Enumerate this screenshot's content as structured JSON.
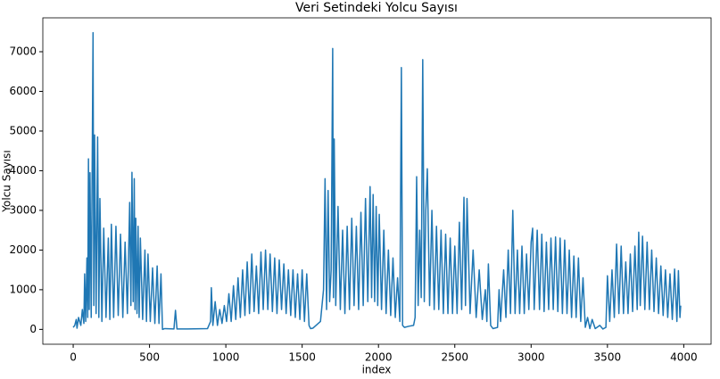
{
  "chart_data": {
    "type": "line",
    "title": "Veri Setindeki Yolcu Sayısı",
    "xlabel": "index",
    "ylabel": "Yolcu Sayısı",
    "color": "#1f77b4",
    "grid": false,
    "xlim": [
      -199,
      4179
    ],
    "ylim": [
      -374,
      7854
    ],
    "xticks": [
      0,
      500,
      1000,
      1500,
      2000,
      2500,
      3000,
      3500,
      4000
    ],
    "yticks": [
      0,
      1000,
      2000,
      3000,
      4000,
      5000,
      6000,
      7000
    ],
    "x": [
      0,
      10,
      20,
      25,
      35,
      50,
      60,
      70,
      75,
      82,
      90,
      95,
      100,
      105,
      110,
      118,
      130,
      135,
      140,
      150,
      160,
      168,
      175,
      188,
      200,
      215,
      230,
      240,
      250,
      265,
      280,
      295,
      310,
      325,
      340,
      355,
      370,
      378,
      385,
      393,
      400,
      405,
      410,
      418,
      425,
      432,
      440,
      455,
      470,
      480,
      490,
      505,
      520,
      535,
      550,
      562,
      575,
      585,
      600,
      660,
      670,
      680,
      750,
      880,
      900,
      905,
      915,
      930,
      945,
      960,
      975,
      990,
      1005,
      1020,
      1035,
      1050,
      1065,
      1080,
      1095,
      1110,
      1125,
      1140,
      1155,
      1170,
      1185,
      1200,
      1215,
      1230,
      1245,
      1260,
      1275,
      1290,
      1305,
      1320,
      1335,
      1350,
      1365,
      1380,
      1395,
      1410,
      1425,
      1440,
      1455,
      1470,
      1485,
      1500,
      1515,
      1530,
      1545,
      1555,
      1570,
      1620,
      1640,
      1650,
      1660,
      1670,
      1680,
      1690,
      1700,
      1705,
      1710,
      1720,
      1735,
      1750,
      1765,
      1780,
      1795,
      1810,
      1825,
      1840,
      1855,
      1870,
      1885,
      1900,
      1915,
      1930,
      1945,
      1955,
      1965,
      1975,
      1985,
      1995,
      2005,
      2020,
      2035,
      2050,
      2065,
      2080,
      2095,
      2110,
      2125,
      2140,
      2150,
      2158,
      2170,
      2200,
      2230,
      2240,
      2250,
      2260,
      2270,
      2280,
      2290,
      2300,
      2310,
      2320,
      2335,
      2350,
      2365,
      2380,
      2395,
      2410,
      2425,
      2440,
      2455,
      2470,
      2485,
      2500,
      2515,
      2530,
      2545,
      2560,
      2570,
      2580,
      2600,
      2620,
      2640,
      2660,
      2680,
      2700,
      2710,
      2720,
      2735,
      2750,
      2780,
      2790,
      2800,
      2820,
      2835,
      2850,
      2865,
      2880,
      2895,
      2910,
      2925,
      2940,
      2955,
      2970,
      2985,
      3000,
      3010,
      3020,
      3040,
      3055,
      3070,
      3085,
      3100,
      3115,
      3130,
      3145,
      3160,
      3175,
      3190,
      3205,
      3220,
      3235,
      3250,
      3265,
      3280,
      3295,
      3310,
      3325,
      3340,
      3355,
      3370,
      3385,
      3400,
      3420,
      3450,
      3470,
      3490,
      3500,
      3515,
      3530,
      3545,
      3560,
      3575,
      3590,
      3605,
      3620,
      3635,
      3650,
      3665,
      3680,
      3695,
      3705,
      3715,
      3730,
      3745,
      3760,
      3775,
      3790,
      3805,
      3820,
      3835,
      3850,
      3865,
      3880,
      3895,
      3910,
      3925,
      3940,
      3955,
      3965,
      3975,
      3980
    ],
    "values": [
      50,
      100,
      250,
      30,
      300,
      100,
      500,
      150,
      1400,
      200,
      1800,
      300,
      4300,
      500,
      3950,
      300,
      7480,
      600,
      4900,
      400,
      4850,
      300,
      3300,
      200,
      2550,
      300,
      2300,
      250,
      2650,
      300,
      2600,
      350,
      2400,
      300,
      2200,
      400,
      3200,
      600,
      3960,
      700,
      3800,
      500,
      2800,
      400,
      2600,
      300,
      2300,
      250,
      2000,
      200,
      1900,
      200,
      1550,
      150,
      1600,
      150,
      1400,
      0,
      20,
      10,
      480,
      10,
      10,
      20,
      200,
      1050,
      100,
      700,
      100,
      500,
      150,
      600,
      200,
      900,
      200,
      1100,
      250,
      1300,
      300,
      1500,
      350,
      1700,
      400,
      1900,
      450,
      1600,
      400,
      1950,
      500,
      2000,
      500,
      1900,
      450,
      1800,
      400,
      1750,
      500,
      1650,
      400,
      1500,
      350,
      1500,
      300,
      1400,
      250,
      1500,
      200,
      1400,
      100,
      20,
      30,
      200,
      1000,
      3800,
      500,
      3500,
      700,
      1500,
      7080,
      800,
      4800,
      600,
      3100,
      500,
      2500,
      400,
      2600,
      500,
      2800,
      600,
      2600,
      500,
      2950,
      600,
      3300,
      700,
      3600,
      800,
      3400,
      700,
      3100,
      600,
      2900,
      500,
      2500,
      400,
      2000,
      350,
      1800,
      300,
      1300,
      200,
      6600,
      100,
      50,
      80,
      100,
      300,
      3850,
      600,
      2500,
      800,
      6800,
      700,
      3000,
      4050,
      600,
      3000,
      500,
      2600,
      500,
      2500,
      400,
      2400,
      400,
      2300,
      400,
      2100,
      400,
      2700,
      500,
      3330,
      600,
      3300,
      400,
      2000,
      300,
      1500,
      250,
      1000,
      200,
      1650,
      100,
      20,
      50,
      1000,
      200,
      1500,
      300,
      2000,
      400,
      3000,
      400,
      2000,
      400,
      2100,
      400,
      1900,
      500,
      2200,
      2550,
      500,
      2500,
      500,
      2400,
      450,
      2200,
      500,
      2300,
      500,
      2330,
      450,
      2300,
      400,
      2250,
      400,
      2000,
      300,
      1850,
      300,
      1800,
      200,
      1300,
      50,
      300,
      20,
      250,
      20,
      100,
      10,
      50,
      1350,
      200,
      1500,
      300,
      2150,
      400,
      2100,
      400,
      1700,
      400,
      1900,
      450,
      2100,
      500,
      2450,
      600,
      2350,
      500,
      2200,
      500,
      2000,
      450,
      1800,
      400,
      1600,
      350,
      1500,
      300,
      1400,
      250,
      1520,
      200,
      1480,
      300,
      600
    ]
  }
}
